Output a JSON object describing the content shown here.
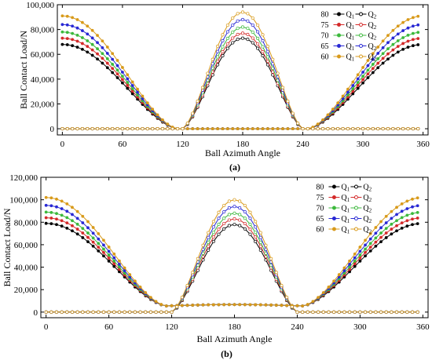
{
  "chart_data": [
    {
      "type": "line",
      "panel_label": "(a)",
      "xlabel": "Ball Azimuth Angle",
      "ylabel": "Ball Contact Load/N",
      "xlim": [
        -5,
        365
      ],
      "ylim": [
        -5000,
        100000
      ],
      "x_ticks": [
        0,
        60,
        120,
        180,
        240,
        300,
        360
      ],
      "y_ticks": [
        0,
        20000,
        40000,
        60000,
        80000,
        100000
      ],
      "y_tick_labels": [
        "0",
        "20,000",
        "40,000",
        "60,000",
        "80,000",
        "100,000"
      ],
      "grid": false,
      "legend_position": "top-right",
      "legend_q1_label": "Q1",
      "legend_q2_label": "Q2",
      "series": [
        {
          "name": "80",
          "color": "#000000",
          "q1_peak": 68000,
          "q2_peak": 73000,
          "q1_min": 0,
          "q2_min": 0
        },
        {
          "name": "75",
          "color": "#d42a2a",
          "q1_peak": 73000,
          "q2_peak": 77000,
          "q1_min": 0,
          "q2_min": 0
        },
        {
          "name": "70",
          "color": "#3cb93c",
          "q1_peak": 78000,
          "q2_peak": 82000,
          "q1_min": 0,
          "q2_min": 0
        },
        {
          "name": "65",
          "color": "#2828d4",
          "q1_peak": 84000,
          "q2_peak": 88000,
          "q1_min": 0,
          "q2_min": 0
        },
        {
          "name": "60",
          "color": "#d89a1a",
          "q1_peak": 91000,
          "q2_peak": 94000,
          "q1_min": 0,
          "q2_min": 0
        }
      ]
    },
    {
      "type": "line",
      "panel_label": "(b)",
      "xlabel": "Ball Azimuth Angle",
      "ylabel": "Ball Contact Load/N",
      "xlim": [
        -5,
        365
      ],
      "ylim": [
        -5000,
        120000
      ],
      "x_ticks": [
        0,
        60,
        120,
        180,
        240,
        300,
        360
      ],
      "y_ticks": [
        0,
        20000,
        40000,
        60000,
        80000,
        100000,
        120000
      ],
      "y_tick_labels": [
        "0",
        "20,000",
        "40,000",
        "60,000",
        "80,000",
        "100,000",
        "120,000"
      ],
      "grid": false,
      "legend_position": "top-right",
      "legend_q1_label": "Q1",
      "legend_q2_label": "Q2",
      "series": [
        {
          "name": "80",
          "color": "#000000",
          "q1_peak": 79000,
          "q2_peak": 78000,
          "q1_min": 5500,
          "q2_min": 0
        },
        {
          "name": "75",
          "color": "#d42a2a",
          "q1_peak": 84000,
          "q2_peak": 83000,
          "q1_min": 5500,
          "q2_min": 0
        },
        {
          "name": "70",
          "color": "#3cb93c",
          "q1_peak": 89000,
          "q2_peak": 88000,
          "q1_min": 5500,
          "q2_min": 0
        },
        {
          "name": "65",
          "color": "#2828d4",
          "q1_peak": 95000,
          "q2_peak": 94000,
          "q1_min": 5500,
          "q2_min": 0
        },
        {
          "name": "60",
          "color": "#d89a1a",
          "q1_peak": 102000,
          "q2_peak": 100000,
          "q1_min": 5500,
          "q2_min": 0
        }
      ]
    }
  ]
}
